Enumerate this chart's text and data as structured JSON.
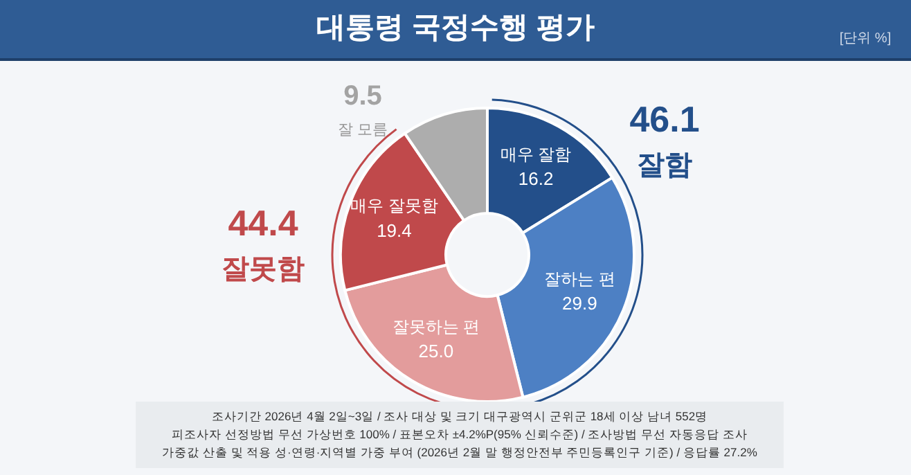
{
  "chart_data": {
    "type": "donut",
    "title": "대통령 국정수행 평가",
    "categories": [
      "매우 잘함",
      "잘하는 편",
      "잘못하는 편",
      "매우 잘못함",
      null
    ],
    "values": [
      16.2,
      29.9,
      25.0,
      19.4,
      9.5
    ],
    "colors": [
      "#234f8a",
      "#4d80c4",
      "#e39c9c",
      "#c0494b",
      "#adadad"
    ],
    "value_labels": [
      "16.2",
      "29.9",
      "25.0",
      "19.4",
      null
    ],
    "annotations": [
      "[단위 %]",
      "46.1",
      "잘함",
      "44.4",
      "잘못함",
      "9.5",
      "잘 모름",
      "조사기간 2026년 4월 2일~3일 / 조사 대상 및 크기 대구광역시 군위군 18세 이상 남녀 552명",
      "피조사자 선정방법 무선 가상번호 100% / 표본오차 ±4.2%P(95% 신뢰수준) / 조사방법 무선 자동응답 조사",
      "가중값 산출 및 적용 성·연령·지역별 가중 부여 (2026년 2월 말 행정안전부 주민등록인구 기준) / 응답률 27.2%"
    ]
  }
}
